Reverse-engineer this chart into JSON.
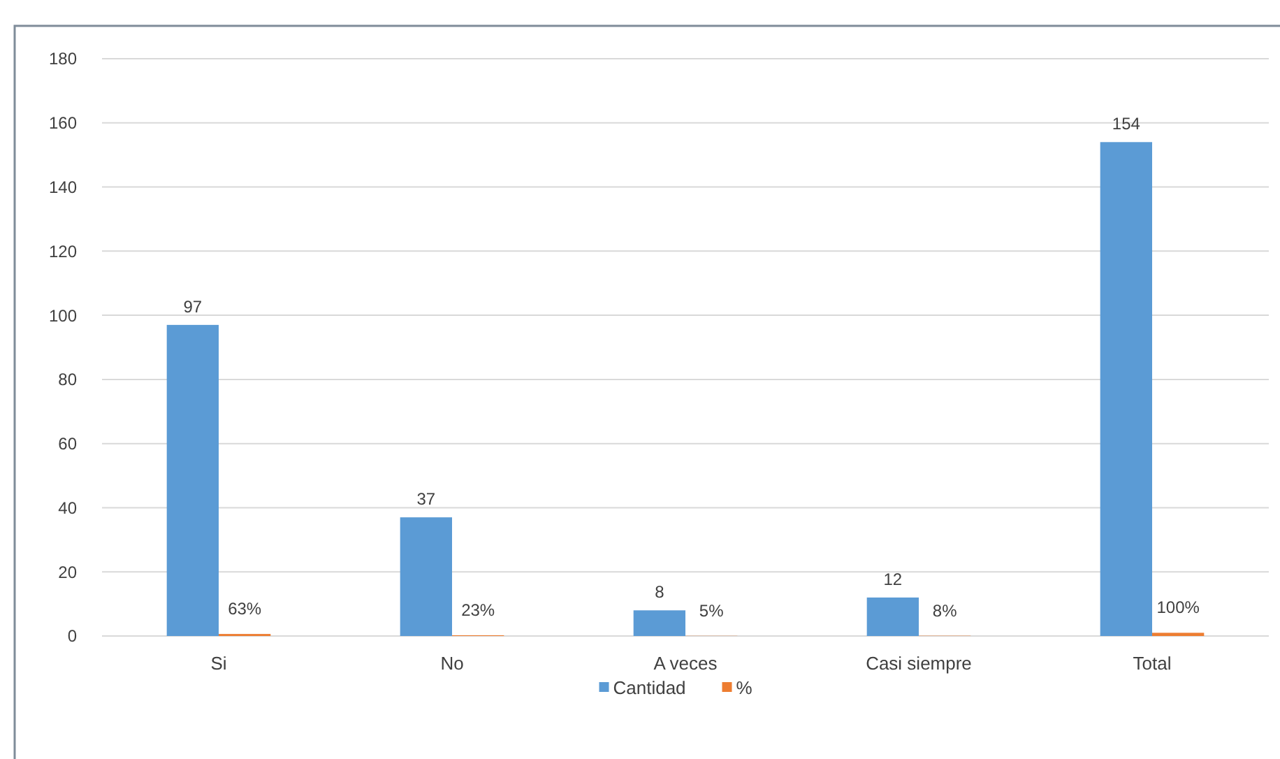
{
  "chart_data": {
    "type": "bar",
    "categories": [
      "Si",
      "No",
      "A veces",
      "Casi siempre",
      "Total"
    ],
    "series": [
      {
        "name": "Cantidad",
        "color": "#5b9bd5",
        "values": [
          97,
          37,
          8,
          12,
          154
        ],
        "value_labels": [
          "97",
          "37",
          "8",
          "12",
          "154"
        ]
      },
      {
        "name": "%",
        "color": "#ed7d31",
        "values": [
          0.63,
          0.23,
          0.05,
          0.08,
          1
        ],
        "value_labels": [
          "63%",
          "23%",
          "5%",
          "8%",
          "100%"
        ]
      }
    ],
    "ylim": [
      0,
      180
    ],
    "yticks": [
      0,
      20,
      40,
      60,
      80,
      100,
      120,
      140,
      160,
      180
    ],
    "grid": "y",
    "legend": "bottom"
  }
}
